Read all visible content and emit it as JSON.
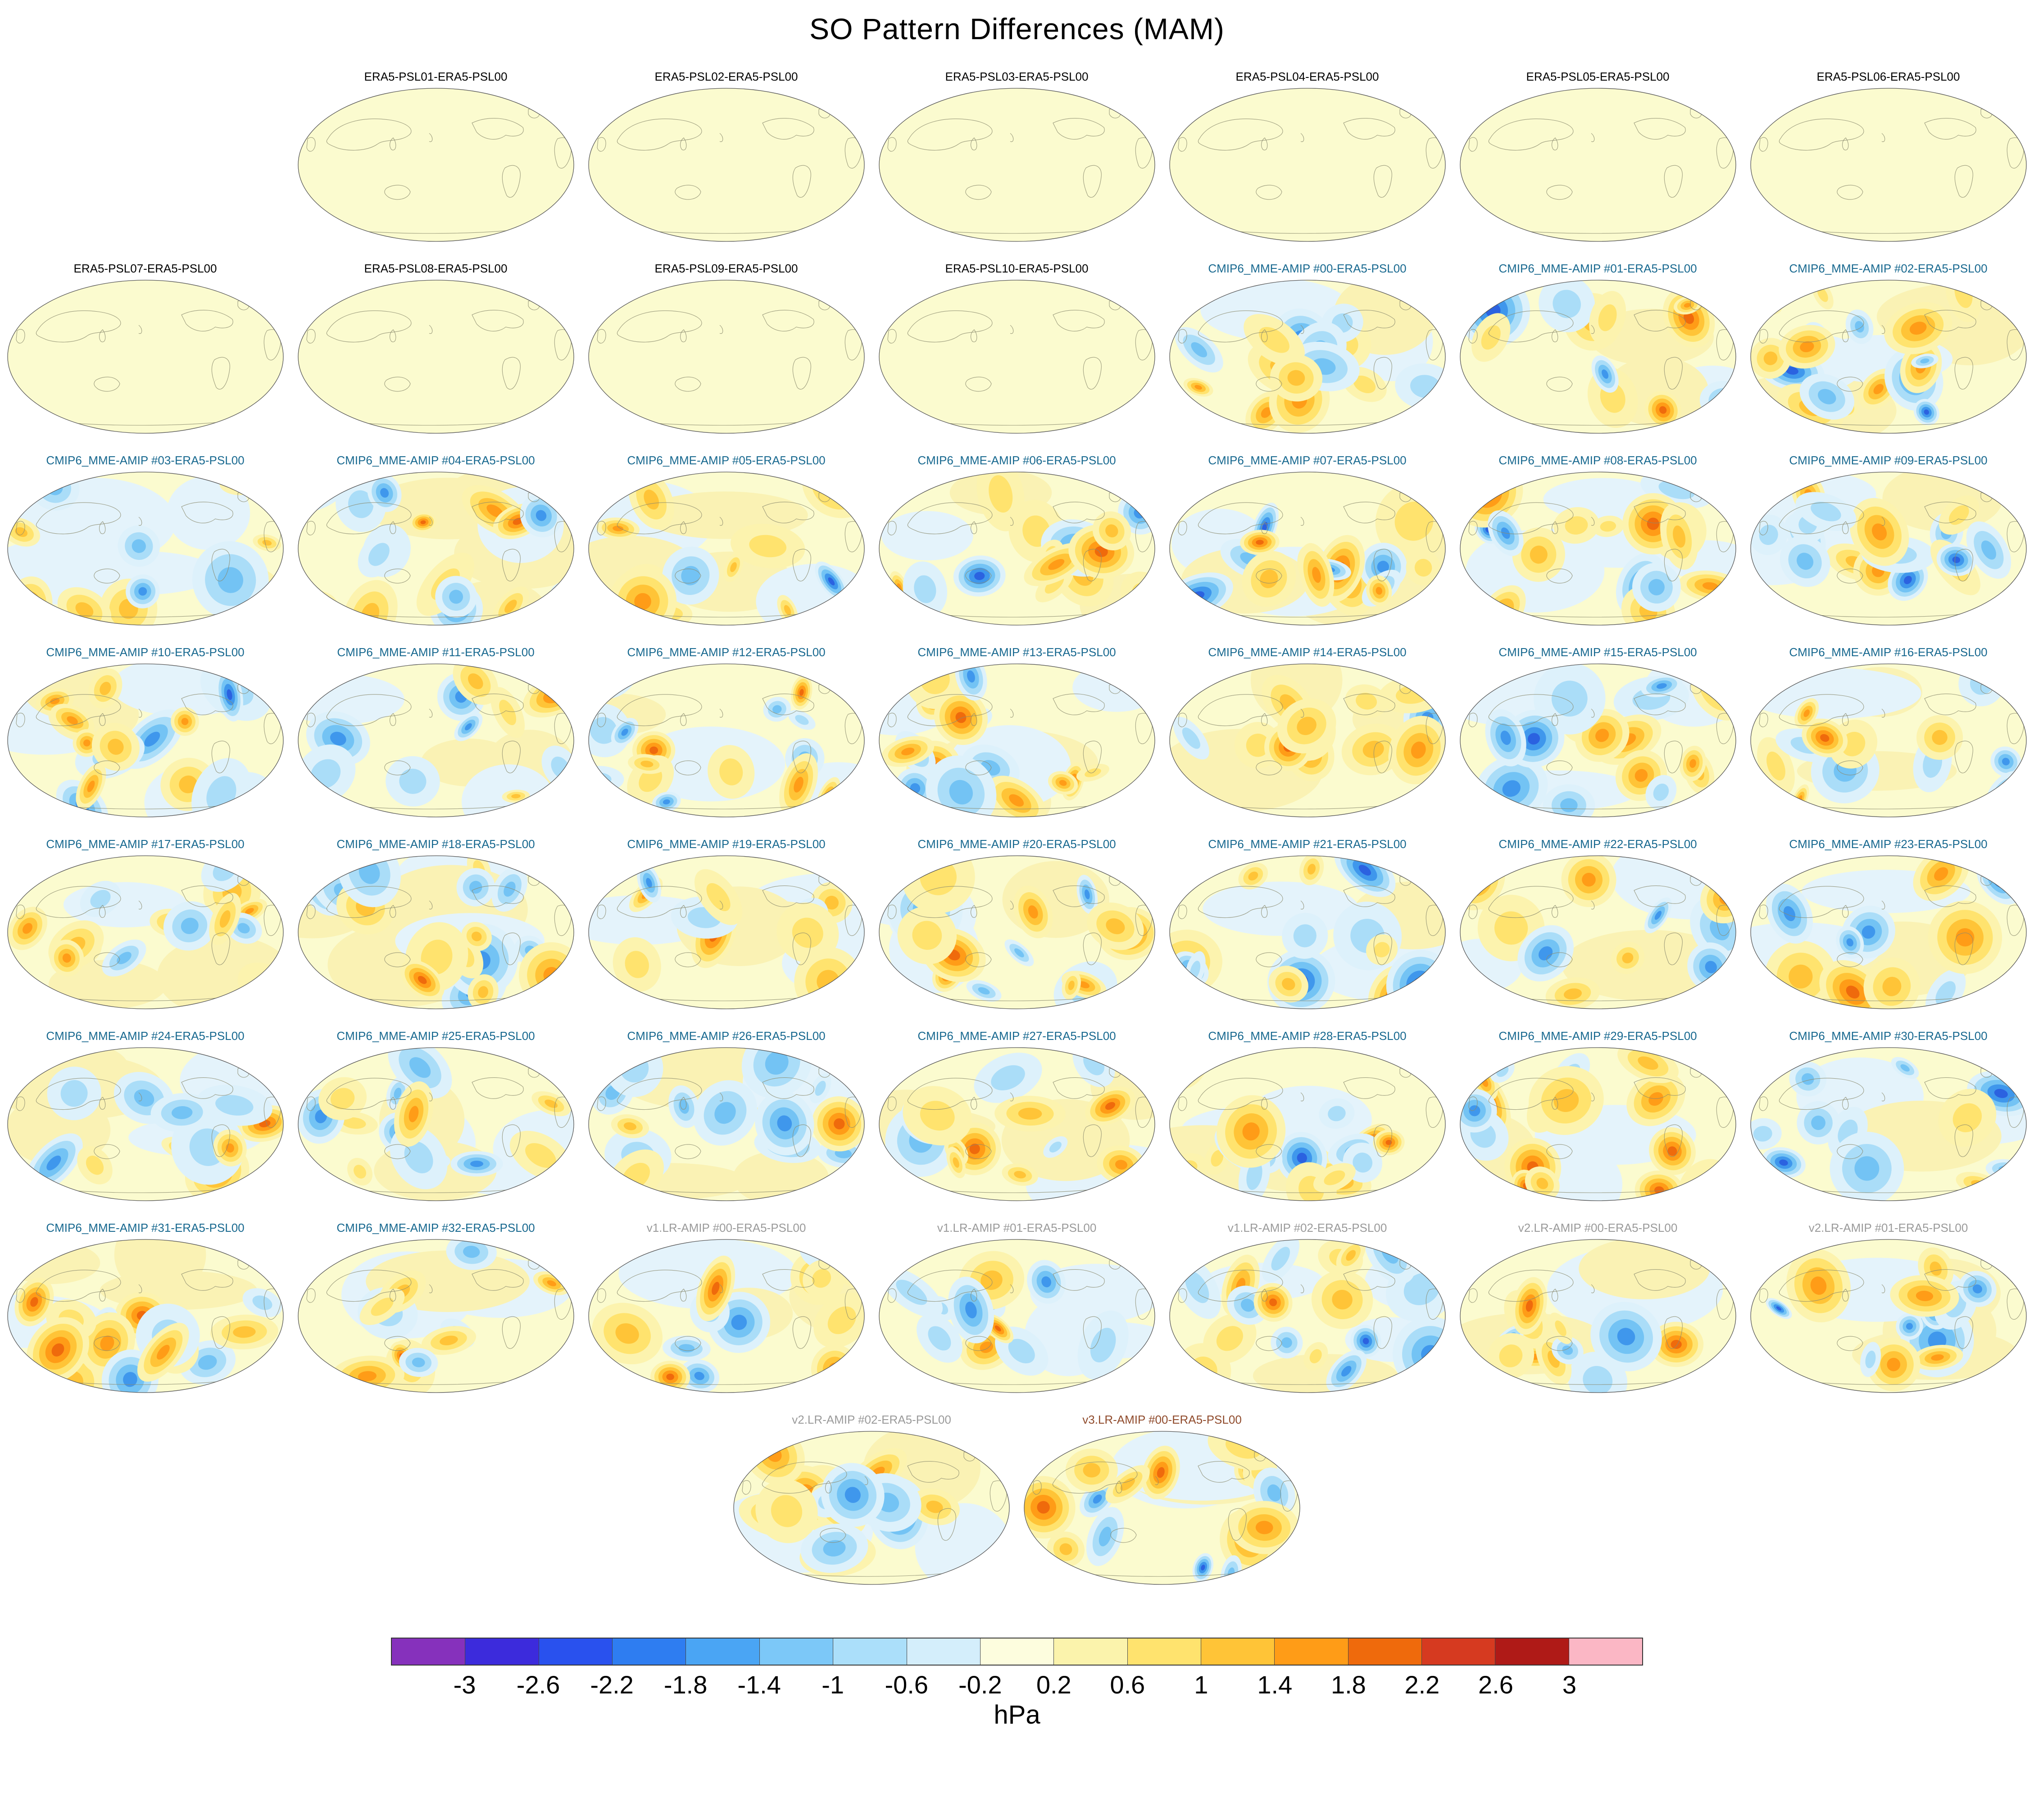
{
  "title": "SO Pattern Differences (MAM)",
  "title_colors": {
    "era5": "#000000",
    "cmip6": "#17688F",
    "v1": "#9a9a9a",
    "v2": "#9a9a9a",
    "v3": "#8F4A2B"
  },
  "palette": {
    "base_map": "#FBFBCF",
    "coastline": "#8b8b6e",
    "outline": "#555555",
    "warm": [
      "#FCF3AE",
      "#FFE36E",
      "#FFC437",
      "#FF9C17",
      "#EF6A0C",
      "#D63A20"
    ],
    "cold": [
      "#DDF1FB",
      "#AADDF8",
      "#73C3F4",
      "#3F97EC",
      "#2B62E0",
      "#4A2BCE"
    ],
    "warm_wash": "#FAF2B4",
    "cold_wash": "#E4F3FB"
  },
  "chart_data": {
    "type": "heatmap",
    "title": "SO Pattern Differences (MAM)",
    "unit": "hPa",
    "value_range": [
      -3,
      3
    ],
    "legend_position": "bottom",
    "colorbar_ticks": [
      "-3",
      "-2.6",
      "-2.2",
      "-1.8",
      "-1.4",
      "-1",
      "-0.6",
      "-0.2",
      "0.2",
      "0.6",
      "1",
      "1.4",
      "1.8",
      "2.2",
      "2.6",
      "3"
    ],
    "colorbar_colors": [
      "#8631BC",
      "#3C2BDC",
      "#2951EE",
      "#2E7DF1",
      "#4AA5F4",
      "#7CC8F8",
      "#ABDFFA",
      "#D4EEFB",
      "#FDFDDE",
      "#FBF3AC",
      "#FFE36E",
      "#FFC437",
      "#FF9C17",
      "#EF6A0C",
      "#D63A20",
      "#AF1A17",
      "#FBB7C5"
    ],
    "panels": [
      {
        "title": "ERA5-PSL01-ERA5-PSL00",
        "type": "era5"
      },
      {
        "title": "ERA5-PSL02-ERA5-PSL00",
        "type": "era5"
      },
      {
        "title": "ERA5-PSL03-ERA5-PSL00",
        "type": "era5"
      },
      {
        "title": "ERA5-PSL04-ERA5-PSL00",
        "type": "era5"
      },
      {
        "title": "ERA5-PSL05-ERA5-PSL00",
        "type": "era5"
      },
      {
        "title": "ERA5-PSL06-ERA5-PSL00",
        "type": "era5"
      },
      {
        "title": "ERA5-PSL07-ERA5-PSL00",
        "type": "era5"
      },
      {
        "title": "ERA5-PSL08-ERA5-PSL00",
        "type": "era5"
      },
      {
        "title": "ERA5-PSL09-ERA5-PSL00",
        "type": "era5"
      },
      {
        "title": "ERA5-PSL10-ERA5-PSL00",
        "type": "era5"
      },
      {
        "title": "CMIP6_MME-AMIP #00-ERA5-PSL00",
        "type": "cmip6"
      },
      {
        "title": "CMIP6_MME-AMIP #01-ERA5-PSL00",
        "type": "cmip6"
      },
      {
        "title": "CMIP6_MME-AMIP #02-ERA5-PSL00",
        "type": "cmip6"
      },
      {
        "title": "CMIP6_MME-AMIP #03-ERA5-PSL00",
        "type": "cmip6"
      },
      {
        "title": "CMIP6_MME-AMIP #04-ERA5-PSL00",
        "type": "cmip6"
      },
      {
        "title": "CMIP6_MME-AMIP #05-ERA5-PSL00",
        "type": "cmip6"
      },
      {
        "title": "CMIP6_MME-AMIP #06-ERA5-PSL00",
        "type": "cmip6"
      },
      {
        "title": "CMIP6_MME-AMIP #07-ERA5-PSL00",
        "type": "cmip6"
      },
      {
        "title": "CMIP6_MME-AMIP #08-ERA5-PSL00",
        "type": "cmip6"
      },
      {
        "title": "CMIP6_MME-AMIP #09-ERA5-PSL00",
        "type": "cmip6"
      },
      {
        "title": "CMIP6_MME-AMIP #10-ERA5-PSL00",
        "type": "cmip6"
      },
      {
        "title": "CMIP6_MME-AMIP #11-ERA5-PSL00",
        "type": "cmip6"
      },
      {
        "title": "CMIP6_MME-AMIP #12-ERA5-PSL00",
        "type": "cmip6"
      },
      {
        "title": "CMIP6_MME-AMIP #13-ERA5-PSL00",
        "type": "cmip6"
      },
      {
        "title": "CMIP6_MME-AMIP #14-ERA5-PSL00",
        "type": "cmip6"
      },
      {
        "title": "CMIP6_MME-AMIP #15-ERA5-PSL00",
        "type": "cmip6"
      },
      {
        "title": "CMIP6_MME-AMIP #16-ERA5-PSL00",
        "type": "cmip6"
      },
      {
        "title": "CMIP6_MME-AMIP #17-ERA5-PSL00",
        "type": "cmip6"
      },
      {
        "title": "CMIP6_MME-AMIP #18-ERA5-PSL00",
        "type": "cmip6"
      },
      {
        "title": "CMIP6_MME-AMIP #19-ERA5-PSL00",
        "type": "cmip6"
      },
      {
        "title": "CMIP6_MME-AMIP #20-ERA5-PSL00",
        "type": "cmip6"
      },
      {
        "title": "CMIP6_MME-AMIP #21-ERA5-PSL00",
        "type": "cmip6"
      },
      {
        "title": "CMIP6_MME-AMIP #22-ERA5-PSL00",
        "type": "cmip6"
      },
      {
        "title": "CMIP6_MME-AMIP #23-ERA5-PSL00",
        "type": "cmip6"
      },
      {
        "title": "CMIP6_MME-AMIP #24-ERA5-PSL00",
        "type": "cmip6"
      },
      {
        "title": "CMIP6_MME-AMIP #25-ERA5-PSL00",
        "type": "cmip6"
      },
      {
        "title": "CMIP6_MME-AMIP #26-ERA5-PSL00",
        "type": "cmip6"
      },
      {
        "title": "CMIP6_MME-AMIP #27-ERA5-PSL00",
        "type": "cmip6"
      },
      {
        "title": "CMIP6_MME-AMIP #28-ERA5-PSL00",
        "type": "cmip6"
      },
      {
        "title": "CMIP6_MME-AMIP #29-ERA5-PSL00",
        "type": "cmip6"
      },
      {
        "title": "CMIP6_MME-AMIP #30-ERA5-PSL00",
        "type": "cmip6"
      },
      {
        "title": "CMIP6_MME-AMIP #31-ERA5-PSL00",
        "type": "cmip6"
      },
      {
        "title": "CMIP6_MME-AMIP #32-ERA5-PSL00",
        "type": "cmip6"
      },
      {
        "title": "v1.LR-AMIP #00-ERA5-PSL00",
        "type": "v1"
      },
      {
        "title": "v1.LR-AMIP #01-ERA5-PSL00",
        "type": "v1"
      },
      {
        "title": "v1.LR-AMIP #02-ERA5-PSL00",
        "type": "v1"
      },
      {
        "title": "v2.LR-AMIP #00-ERA5-PSL00",
        "type": "v2"
      },
      {
        "title": "v2.LR-AMIP #01-ERA5-PSL00",
        "type": "v2"
      },
      {
        "title": "v2.LR-AMIP #02-ERA5-PSL00",
        "type": "v2"
      },
      {
        "title": "v3.LR-AMIP #00-ERA5-PSL00",
        "type": "v3"
      }
    ],
    "rows": [
      {
        "offset": 1,
        "panels": [
          0,
          1,
          2,
          3,
          4,
          5
        ]
      },
      {
        "offset": 0,
        "panels": [
          6,
          7,
          8,
          9,
          10,
          11,
          12
        ]
      },
      {
        "offset": 0,
        "panels": [
          13,
          14,
          15,
          16,
          17,
          18,
          19
        ]
      },
      {
        "offset": 0,
        "panels": [
          20,
          21,
          22,
          23,
          24,
          25,
          26
        ]
      },
      {
        "offset": 0,
        "panels": [
          27,
          28,
          29,
          30,
          31,
          32,
          33
        ]
      },
      {
        "offset": 0,
        "panels": [
          34,
          35,
          36,
          37,
          38,
          39,
          40
        ]
      },
      {
        "offset": 0,
        "panels": [
          41,
          42,
          43,
          44,
          45,
          46,
          47
        ]
      },
      {
        "offset": 2.5,
        "panels": [
          48,
          49
        ]
      }
    ]
  }
}
